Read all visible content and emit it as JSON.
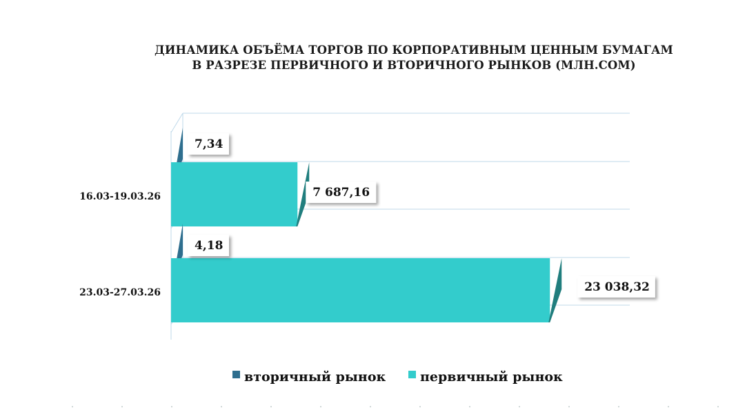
{
  "chart_data": {
    "type": "bar",
    "orientation": "horizontal",
    "style": "3d-clustered",
    "title_line1": "ДИНАМИКА ОБЪЁМА ТОРГОВ ПО КОРПОРАТИВНЫМ ЦЕННЫМ БУМАГАМ",
    "title_line2": "В РАЗРЕЗЕ ПЕРВИЧНОГО И ВТОРИЧНОГО РЫНКОВ  (МЛН.СОМ)",
    "categories": [
      "16.03-19.03.26",
      "23.03-27.03.26"
    ],
    "series": [
      {
        "name": "вторичный рынок",
        "values": [
          7.34,
          4.18
        ],
        "labels": [
          "7,34",
          "4,18"
        ],
        "color": "#2E6E8E"
      },
      {
        "name": "первичный рынок",
        "values": [
          7687.16,
          23038.32
        ],
        "labels": [
          "7 687,16",
          "23 038,32"
        ],
        "color": "#33CCCC"
      }
    ],
    "xlim": [
      0,
      25000
    ],
    "grid": true,
    "legend": "bottom"
  }
}
